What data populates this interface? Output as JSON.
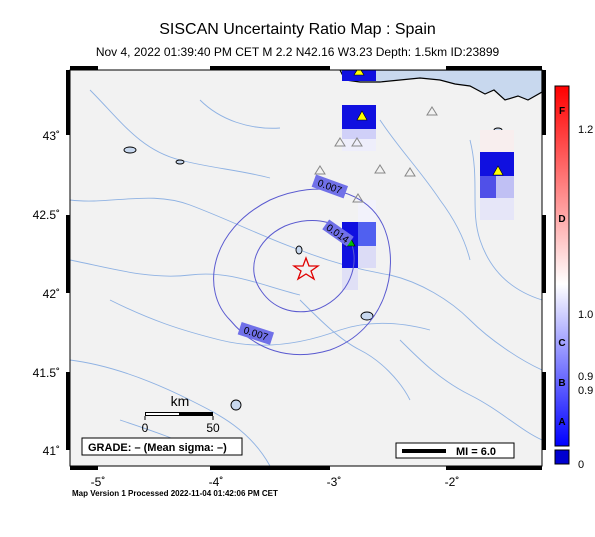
{
  "header": {
    "title": "SISCAN Uncertainty Ratio Map : Spain",
    "subtitle": "Nov  4, 2022 01:39:40 PM CET   M 2.2   N42.16 W3.23   Depth: 1.5km   ID:23899"
  },
  "axes": {
    "x_ticks": [
      "-5˚",
      "-4˚",
      "-3˚",
      "-2˚"
    ],
    "y_ticks": [
      "43˚",
      "42.5˚",
      "42˚",
      "41.5˚",
      "41˚"
    ]
  },
  "contours": [
    "0.007",
    "0.014",
    "0.007"
  ],
  "scalebar": {
    "unit": "km",
    "ticks": [
      "0",
      "50"
    ]
  },
  "grade_box": "GRADE: – (Mean sigma: –)",
  "mi_legend": "MI = 6.0",
  "colorbar": {
    "letters": [
      "F",
      "D",
      "C",
      "B",
      "A"
    ],
    "values": [
      "1.2",
      "1.0",
      "0.9",
      "0.9",
      "0"
    ],
    "colors": {
      "high": "#ff0000",
      "mid": "#ffffff",
      "low": "#0000ff"
    }
  },
  "footer": "Map Version 1 Processed 2022-11-04 01:42:06 PM CET"
}
